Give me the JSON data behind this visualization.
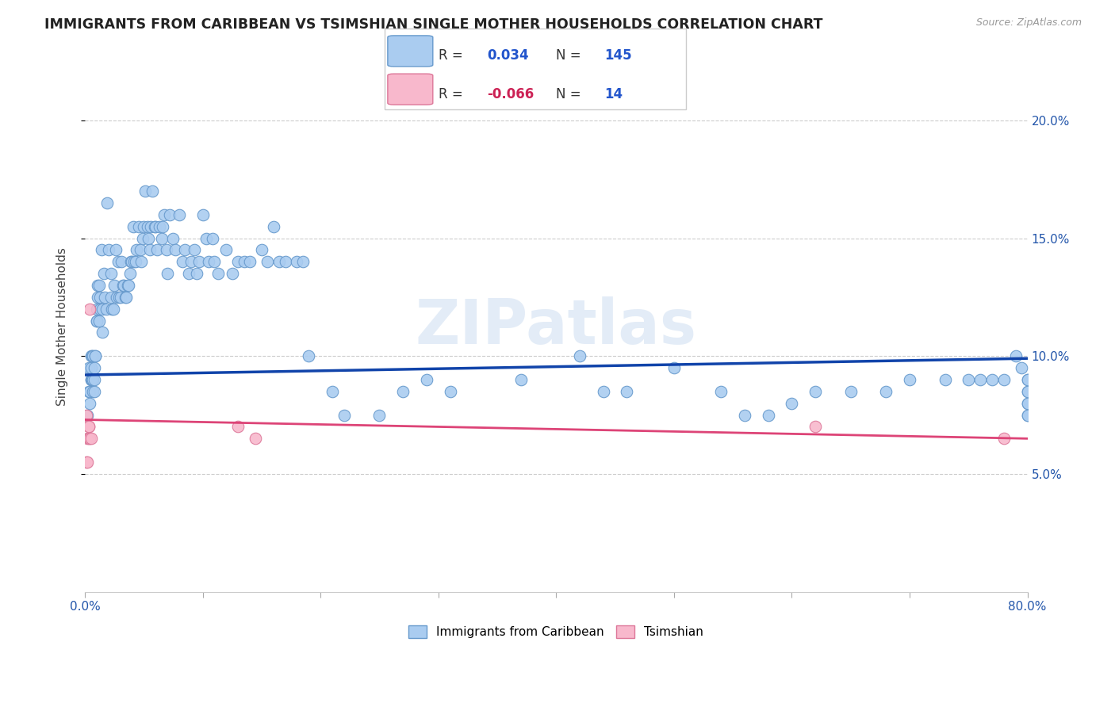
{
  "title": "IMMIGRANTS FROM CARIBBEAN VS TSIMSHIAN SINGLE MOTHER HOUSEHOLDS CORRELATION CHART",
  "source": "Source: ZipAtlas.com",
  "ylabel": "Single Mother Households",
  "xmin": 0.0,
  "xmax": 0.8,
  "ymin": 0.0,
  "ymax": 0.225,
  "yticks": [
    0.05,
    0.1,
    0.15,
    0.2
  ],
  "ytick_labels": [
    "5.0%",
    "10.0%",
    "15.0%",
    "20.0%"
  ],
  "xticks": [
    0.0,
    0.1,
    0.2,
    0.3,
    0.4,
    0.5,
    0.6,
    0.7,
    0.8
  ],
  "xtick_labels": [
    "0.0%",
    "",
    "",
    "",
    "",
    "",
    "",
    "",
    "80.0%"
  ],
  "series1_color": "#aaccf0",
  "series1_edge": "#6699cc",
  "series2_color": "#f8b8cc",
  "series2_edge": "#dd7799",
  "trend1_color": "#1144aa",
  "trend2_color": "#dd4477",
  "R1": 0.034,
  "N1": 145,
  "R2": -0.066,
  "N2": 14,
  "legend_label1": "Immigrants from Caribbean",
  "legend_label2": "Tsimshian",
  "watermark": "ZIPatlas",
  "blue_scatter_x": [
    0.002,
    0.003,
    0.003,
    0.004,
    0.004,
    0.005,
    0.005,
    0.005,
    0.005,
    0.006,
    0.006,
    0.006,
    0.007,
    0.007,
    0.007,
    0.008,
    0.008,
    0.008,
    0.009,
    0.009,
    0.01,
    0.01,
    0.01,
    0.011,
    0.011,
    0.012,
    0.012,
    0.013,
    0.013,
    0.014,
    0.015,
    0.015,
    0.016,
    0.017,
    0.018,
    0.019,
    0.02,
    0.022,
    0.022,
    0.023,
    0.024,
    0.025,
    0.026,
    0.027,
    0.028,
    0.029,
    0.03,
    0.031,
    0.032,
    0.033,
    0.034,
    0.035,
    0.036,
    0.037,
    0.038,
    0.039,
    0.04,
    0.041,
    0.042,
    0.043,
    0.044,
    0.046,
    0.047,
    0.048,
    0.049,
    0.05,
    0.051,
    0.053,
    0.054,
    0.055,
    0.056,
    0.057,
    0.059,
    0.06,
    0.061,
    0.063,
    0.065,
    0.066,
    0.067,
    0.069,
    0.07,
    0.072,
    0.075,
    0.077,
    0.08,
    0.083,
    0.085,
    0.088,
    0.09,
    0.093,
    0.095,
    0.097,
    0.1,
    0.103,
    0.105,
    0.108,
    0.11,
    0.113,
    0.12,
    0.125,
    0.13,
    0.135,
    0.14,
    0.15,
    0.155,
    0.16,
    0.165,
    0.17,
    0.18,
    0.185,
    0.19,
    0.21,
    0.22,
    0.25,
    0.27,
    0.29,
    0.31,
    0.37,
    0.42,
    0.44,
    0.46,
    0.5,
    0.54,
    0.56,
    0.58,
    0.6,
    0.62,
    0.65,
    0.68,
    0.7,
    0.73,
    0.75,
    0.76,
    0.77,
    0.78,
    0.79,
    0.795,
    0.8,
    0.8,
    0.8,
    0.8,
    0.8,
    0.8,
    0.8,
    0.8
  ],
  "blue_scatter_y": [
    0.075,
    0.085,
    0.095,
    0.08,
    0.085,
    0.09,
    0.09,
    0.095,
    0.1,
    0.09,
    0.09,
    0.1,
    0.085,
    0.09,
    0.1,
    0.085,
    0.09,
    0.095,
    0.1,
    0.1,
    0.115,
    0.115,
    0.12,
    0.125,
    0.13,
    0.115,
    0.13,
    0.12,
    0.125,
    0.145,
    0.11,
    0.12,
    0.135,
    0.125,
    0.12,
    0.165,
    0.145,
    0.125,
    0.135,
    0.12,
    0.12,
    0.13,
    0.145,
    0.125,
    0.14,
    0.125,
    0.125,
    0.14,
    0.13,
    0.13,
    0.125,
    0.125,
    0.13,
    0.13,
    0.135,
    0.14,
    0.14,
    0.155,
    0.14,
    0.14,
    0.145,
    0.155,
    0.145,
    0.14,
    0.15,
    0.155,
    0.17,
    0.155,
    0.15,
    0.145,
    0.155,
    0.17,
    0.155,
    0.155,
    0.145,
    0.155,
    0.15,
    0.155,
    0.16,
    0.145,
    0.135,
    0.16,
    0.15,
    0.145,
    0.16,
    0.14,
    0.145,
    0.135,
    0.14,
    0.145,
    0.135,
    0.14,
    0.16,
    0.15,
    0.14,
    0.15,
    0.14,
    0.135,
    0.145,
    0.135,
    0.14,
    0.14,
    0.14,
    0.145,
    0.14,
    0.155,
    0.14,
    0.14,
    0.14,
    0.14,
    0.1,
    0.085,
    0.075,
    0.075,
    0.085,
    0.09,
    0.085,
    0.09,
    0.1,
    0.085,
    0.085,
    0.095,
    0.085,
    0.075,
    0.075,
    0.08,
    0.085,
    0.085,
    0.085,
    0.09,
    0.09,
    0.09,
    0.09,
    0.09,
    0.09,
    0.1,
    0.095,
    0.085,
    0.08,
    0.075,
    0.09,
    0.085,
    0.08,
    0.075,
    0.09
  ],
  "pink_scatter_x": [
    0.001,
    0.001,
    0.002,
    0.002,
    0.003,
    0.003,
    0.003,
    0.004,
    0.004,
    0.005,
    0.13,
    0.145,
    0.62,
    0.78
  ],
  "pink_scatter_y": [
    0.075,
    0.055,
    0.065,
    0.055,
    0.065,
    0.07,
    0.07,
    0.065,
    0.12,
    0.065,
    0.07,
    0.065,
    0.07,
    0.065
  ],
  "trend1_x": [
    0.0,
    0.8
  ],
  "trend1_y": [
    0.092,
    0.099
  ],
  "trend2_x": [
    0.0,
    0.8
  ],
  "trend2_y": [
    0.073,
    0.065
  ]
}
